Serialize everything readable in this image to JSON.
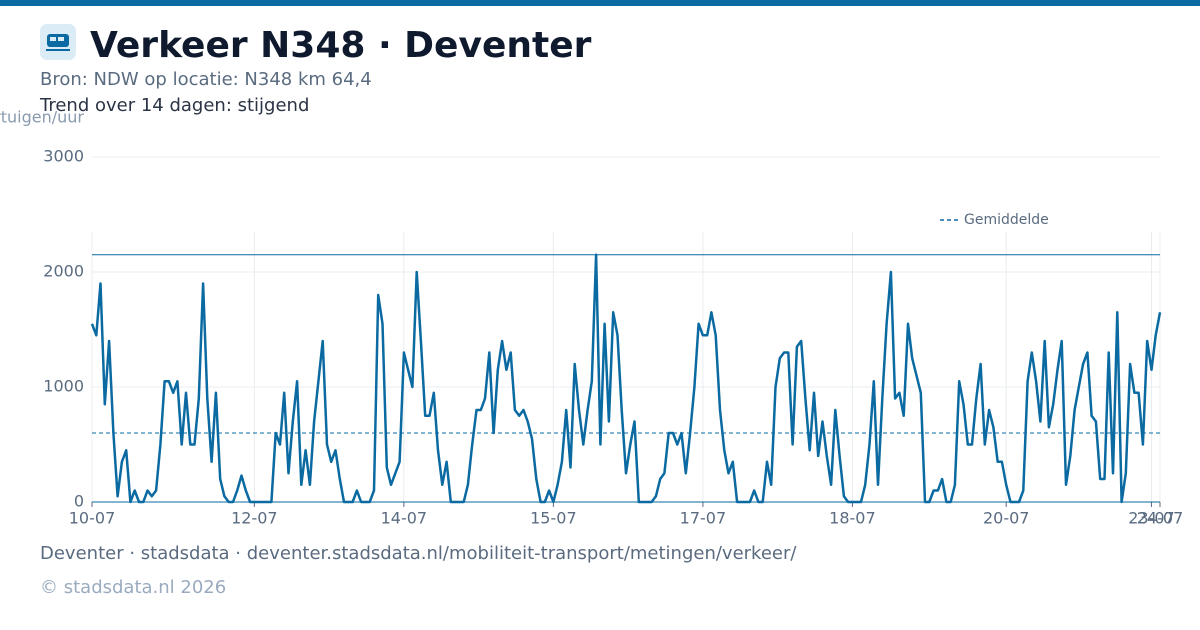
{
  "chart_data": {
    "type": "line",
    "title": "Verkeer N348 · Deventer",
    "subtitle": "Bron: NDW op locatie: N348 km 64,4",
    "trend": "Trend over 14 dagen: stijgend",
    "y_label": "voertuigen/uur",
    "footer": "Deventer · stadsdata · deventer.stadsdata.nl/mobiliteit-transport/metingen/verkeer/",
    "copyright": "© stadsdata.nl 2026",
    "ylim": [
      0,
      3000
    ],
    "yticks": [
      0,
      1000,
      2000,
      3000
    ],
    "xlim": [
      0,
      250
    ],
    "xticks": [
      {
        "value": 0,
        "label": "10-07"
      },
      {
        "value": 38,
        "label": "12-07"
      },
      {
        "value": 73,
        "label": "14-07"
      },
      {
        "value": 108,
        "label": "15-07"
      },
      {
        "value": 143,
        "label": "17-07"
      },
      {
        "value": 178,
        "label": "18-07"
      },
      {
        "value": 214,
        "label": "20-07"
      },
      {
        "value": 248,
        "label": "23-07"
      },
      {
        "value": 250,
        "label": "24-07"
      }
    ],
    "grid": true,
    "legend": "top-right",
    "max_line": 2150,
    "mean_line": {
      "name": "Gemiddelde",
      "value": 600,
      "color": "#0a6aa1"
    },
    "series": [
      {
        "color": "#0a6aa1",
        "values": [
          1550,
          1450,
          1900,
          850,
          1400,
          600,
          50,
          350,
          450,
          0,
          100,
          0,
          0,
          100,
          50,
          100,
          500,
          1050,
          1050,
          950,
          1050,
          500,
          950,
          500,
          500,
          900,
          1900,
          900,
          350,
          950,
          200,
          50,
          0,
          0,
          100,
          230,
          100,
          0,
          0,
          0,
          0,
          0,
          0,
          600,
          500,
          950,
          250,
          700,
          1050,
          150,
          450,
          150,
          700,
          1050,
          1400,
          500,
          350,
          450,
          200,
          0,
          0,
          0,
          100,
          0,
          0,
          0,
          100,
          1800,
          1550,
          300,
          150,
          250,
          350,
          1300,
          1150,
          1000,
          2000,
          1400,
          750,
          750,
          950,
          450,
          150,
          350,
          0,
          0,
          0,
          0,
          150,
          500,
          800,
          800,
          900,
          1300,
          600,
          1150,
          1400,
          1150,
          1300,
          800,
          750,
          800,
          700,
          550,
          200,
          0,
          0,
          100,
          0,
          150,
          350,
          800,
          300,
          1200,
          800,
          500,
          800,
          1050,
          2150,
          500,
          1550,
          700,
          1650,
          1450,
          800,
          250,
          500,
          700,
          0,
          0,
          0,
          0,
          50,
          200,
          250,
          600,
          600,
          500,
          600,
          250,
          600,
          1000,
          1550,
          1450,
          1450,
          1650,
          1450,
          800,
          450,
          250,
          350,
          0,
          0,
          0,
          0,
          100,
          0,
          0,
          350,
          150,
          1000,
          1250,
          1300,
          1300,
          500,
          1350,
          1400,
          900,
          450,
          950,
          400,
          700,
          400,
          150,
          800,
          400,
          50,
          0,
          0,
          0,
          0,
          150,
          500,
          1050,
          150,
          900,
          1550,
          2000,
          900,
          950,
          750,
          1550,
          1250,
          1100,
          950,
          0,
          0,
          100,
          100,
          200,
          0,
          0,
          150,
          1050,
          850,
          500,
          500,
          900,
          1200,
          500,
          800,
          650,
          350,
          350,
          150,
          0,
          0,
          0,
          100,
          1050,
          1300,
          1050,
          700,
          1400,
          650,
          850,
          1150,
          1400,
          150,
          400,
          800,
          1000,
          1200,
          1300,
          750,
          700,
          200,
          200,
          1300,
          250,
          1650,
          0,
          250,
          1200,
          950,
          950,
          500,
          1400,
          1150,
          1450,
          1650
        ]
      }
    ]
  }
}
